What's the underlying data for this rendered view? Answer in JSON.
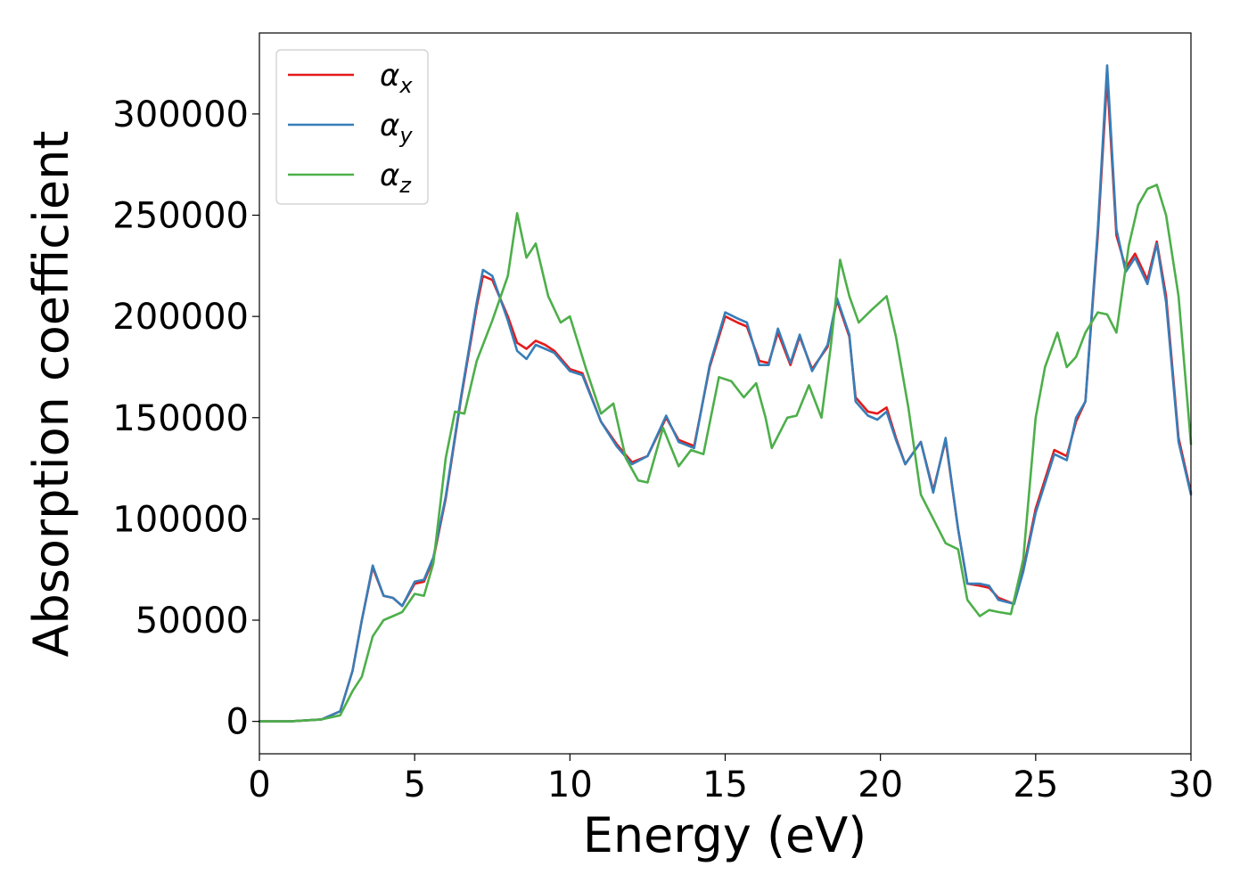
{
  "chart_data": {
    "type": "line",
    "title": "",
    "xlabel": "Energy (eV)",
    "ylabel": "Absorption coefficient",
    "xlim": [
      0,
      30
    ],
    "ylim": [
      -16000,
      340000
    ],
    "xticks": [
      0,
      5,
      10,
      15,
      20,
      25,
      30
    ],
    "xtick_labels": [
      "0",
      "5",
      "10",
      "15",
      "20",
      "25",
      "30"
    ],
    "yticks": [
      0,
      50000,
      100000,
      150000,
      200000,
      250000,
      300000
    ],
    "ytick_labels": [
      "0",
      "50000",
      "100000",
      "150000",
      "200000",
      "250000",
      "300000"
    ],
    "grid": false,
    "legend_position": "top-left",
    "series": [
      {
        "name": "α_x",
        "symbol": "α",
        "subscript": "x",
        "color": "#e41a1c",
        "points": [
          [
            0,
            0
          ],
          [
            1,
            0
          ],
          [
            2,
            1000
          ],
          [
            2.6,
            5000
          ],
          [
            3,
            25000
          ],
          [
            3.3,
            50000
          ],
          [
            3.65,
            76000
          ],
          [
            4,
            62000
          ],
          [
            4.3,
            61000
          ],
          [
            4.6,
            57000
          ],
          [
            5,
            68000
          ],
          [
            5.3,
            69000
          ],
          [
            5.6,
            80000
          ],
          [
            6,
            110000
          ],
          [
            6.5,
            160000
          ],
          [
            7,
            205000
          ],
          [
            7.2,
            220000
          ],
          [
            7.5,
            218000
          ],
          [
            8,
            200000
          ],
          [
            8.3,
            187000
          ],
          [
            8.6,
            184000
          ],
          [
            8.9,
            188000
          ],
          [
            9.2,
            186000
          ],
          [
            9.5,
            183000
          ],
          [
            10,
            174000
          ],
          [
            10.4,
            172000
          ],
          [
            11,
            148000
          ],
          [
            11.5,
            137000
          ],
          [
            12,
            128000
          ],
          [
            12.5,
            131000
          ],
          [
            13.1,
            150000
          ],
          [
            13.5,
            139000
          ],
          [
            14,
            136000
          ],
          [
            14.5,
            175000
          ],
          [
            15,
            200000
          ],
          [
            15.4,
            197000
          ],
          [
            15.7,
            195000
          ],
          [
            16.1,
            178000
          ],
          [
            16.4,
            177000
          ],
          [
            16.7,
            192000
          ],
          [
            17.1,
            176000
          ],
          [
            17.4,
            190000
          ],
          [
            17.8,
            174000
          ],
          [
            18.3,
            185000
          ],
          [
            18.6,
            208000
          ],
          [
            19,
            190000
          ],
          [
            19.2,
            160000
          ],
          [
            19.6,
            153000
          ],
          [
            19.9,
            152000
          ],
          [
            20.2,
            155000
          ],
          [
            20.5,
            140000
          ],
          [
            20.8,
            127000
          ],
          [
            21.3,
            138000
          ],
          [
            21.7,
            114000
          ],
          [
            22.1,
            139000
          ],
          [
            22.5,
            95000
          ],
          [
            22.8,
            68000
          ],
          [
            23.2,
            67000
          ],
          [
            23.5,
            66000
          ],
          [
            23.8,
            61000
          ],
          [
            24.3,
            58000
          ],
          [
            24.6,
            75000
          ],
          [
            25,
            105000
          ],
          [
            25.6,
            134000
          ],
          [
            26,
            131000
          ],
          [
            26.3,
            148000
          ],
          [
            26.6,
            158000
          ],
          [
            27,
            240000
          ],
          [
            27.3,
            318000
          ],
          [
            27.6,
            240000
          ],
          [
            27.9,
            224000
          ],
          [
            28.2,
            231000
          ],
          [
            28.6,
            218000
          ],
          [
            28.9,
            237000
          ],
          [
            29.2,
            210000
          ],
          [
            29.6,
            140000
          ],
          [
            30,
            113000
          ]
        ]
      },
      {
        "name": "α_y",
        "symbol": "α",
        "subscript": "y",
        "color": "#377eb8",
        "points": [
          [
            0,
            0
          ],
          [
            1,
            0
          ],
          [
            2,
            1000
          ],
          [
            2.6,
            5000
          ],
          [
            3,
            25000
          ],
          [
            3.3,
            50000
          ],
          [
            3.65,
            77000
          ],
          [
            4,
            62000
          ],
          [
            4.3,
            61000
          ],
          [
            4.6,
            57000
          ],
          [
            5,
            69000
          ],
          [
            5.3,
            70000
          ],
          [
            5.6,
            81000
          ],
          [
            6,
            111000
          ],
          [
            6.5,
            161000
          ],
          [
            7,
            207000
          ],
          [
            7.2,
            223000
          ],
          [
            7.5,
            220000
          ],
          [
            8,
            198000
          ],
          [
            8.3,
            183000
          ],
          [
            8.6,
            179000
          ],
          [
            8.9,
            186000
          ],
          [
            9.2,
            184000
          ],
          [
            9.5,
            182000
          ],
          [
            10,
            173000
          ],
          [
            10.4,
            171000
          ],
          [
            11,
            148000
          ],
          [
            11.5,
            136000
          ],
          [
            12,
            127000
          ],
          [
            12.5,
            131000
          ],
          [
            13.1,
            151000
          ],
          [
            13.5,
            138000
          ],
          [
            14,
            135000
          ],
          [
            14.5,
            176000
          ],
          [
            15,
            202000
          ],
          [
            15.4,
            199000
          ],
          [
            15.7,
            197000
          ],
          [
            16.1,
            176000
          ],
          [
            16.4,
            176000
          ],
          [
            16.7,
            194000
          ],
          [
            17.1,
            177000
          ],
          [
            17.4,
            191000
          ],
          [
            17.8,
            173000
          ],
          [
            18.3,
            186000
          ],
          [
            18.6,
            209000
          ],
          [
            19,
            191000
          ],
          [
            19.2,
            158000
          ],
          [
            19.6,
            151000
          ],
          [
            19.9,
            149000
          ],
          [
            20.2,
            153000
          ],
          [
            20.5,
            139000
          ],
          [
            20.8,
            127000
          ],
          [
            21.3,
            138000
          ],
          [
            21.7,
            113000
          ],
          [
            22.1,
            140000
          ],
          [
            22.5,
            95000
          ],
          [
            22.8,
            68000
          ],
          [
            23.2,
            68000
          ],
          [
            23.5,
            67000
          ],
          [
            23.8,
            60000
          ],
          [
            24.3,
            58000
          ],
          [
            24.6,
            74000
          ],
          [
            25,
            103000
          ],
          [
            25.6,
            132000
          ],
          [
            26,
            129000
          ],
          [
            26.3,
            150000
          ],
          [
            26.6,
            158000
          ],
          [
            27,
            243000
          ],
          [
            27.3,
            324000
          ],
          [
            27.6,
            243000
          ],
          [
            27.9,
            222000
          ],
          [
            28.2,
            229000
          ],
          [
            28.6,
            216000
          ],
          [
            28.9,
            236000
          ],
          [
            29.2,
            207000
          ],
          [
            29.6,
            138000
          ],
          [
            30,
            112000
          ]
        ]
      },
      {
        "name": "α_z",
        "symbol": "α",
        "subscript": "z",
        "color": "#4daf4a",
        "points": [
          [
            0,
            0
          ],
          [
            1,
            0
          ],
          [
            2,
            1000
          ],
          [
            2.6,
            3000
          ],
          [
            3,
            15000
          ],
          [
            3.3,
            22000
          ],
          [
            3.65,
            42000
          ],
          [
            4,
            50000
          ],
          [
            4.3,
            52000
          ],
          [
            4.6,
            54000
          ],
          [
            5,
            63000
          ],
          [
            5.3,
            62000
          ],
          [
            5.6,
            78000
          ],
          [
            6,
            130000
          ],
          [
            6.3,
            153000
          ],
          [
            6.6,
            152000
          ],
          [
            7,
            178000
          ],
          [
            7.5,
            198000
          ],
          [
            8,
            220000
          ],
          [
            8.3,
            251000
          ],
          [
            8.6,
            229000
          ],
          [
            8.9,
            236000
          ],
          [
            9.3,
            210000
          ],
          [
            9.7,
            197000
          ],
          [
            10,
            200000
          ],
          [
            10.5,
            175000
          ],
          [
            11,
            152000
          ],
          [
            11.4,
            157000
          ],
          [
            11.8,
            130000
          ],
          [
            12.2,
            119000
          ],
          [
            12.5,
            118000
          ],
          [
            13,
            145000
          ],
          [
            13.5,
            126000
          ],
          [
            13.9,
            134000
          ],
          [
            14.3,
            132000
          ],
          [
            14.8,
            170000
          ],
          [
            15.2,
            168000
          ],
          [
            15.6,
            160000
          ],
          [
            16,
            167000
          ],
          [
            16.3,
            150000
          ],
          [
            16.5,
            135000
          ],
          [
            17,
            150000
          ],
          [
            17.3,
            151000
          ],
          [
            17.7,
            166000
          ],
          [
            18.1,
            150000
          ],
          [
            18.4,
            185000
          ],
          [
            18.7,
            228000
          ],
          [
            19,
            210000
          ],
          [
            19.3,
            197000
          ],
          [
            19.7,
            203000
          ],
          [
            20.2,
            210000
          ],
          [
            20.5,
            190000
          ],
          [
            20.9,
            155000
          ],
          [
            21.3,
            112000
          ],
          [
            21.8,
            97000
          ],
          [
            22.1,
            88000
          ],
          [
            22.5,
            85000
          ],
          [
            22.8,
            60000
          ],
          [
            23.2,
            52000
          ],
          [
            23.5,
            55000
          ],
          [
            23.8,
            54000
          ],
          [
            24.2,
            53000
          ],
          [
            24.6,
            80000
          ],
          [
            25,
            150000
          ],
          [
            25.3,
            175000
          ],
          [
            25.7,
            192000
          ],
          [
            26,
            175000
          ],
          [
            26.3,
            180000
          ],
          [
            26.6,
            192000
          ],
          [
            27,
            202000
          ],
          [
            27.3,
            201000
          ],
          [
            27.6,
            192000
          ],
          [
            28,
            235000
          ],
          [
            28.3,
            255000
          ],
          [
            28.6,
            263000
          ],
          [
            28.9,
            265000
          ],
          [
            29.2,
            250000
          ],
          [
            29.6,
            210000
          ],
          [
            30,
            137000
          ]
        ]
      }
    ]
  }
}
